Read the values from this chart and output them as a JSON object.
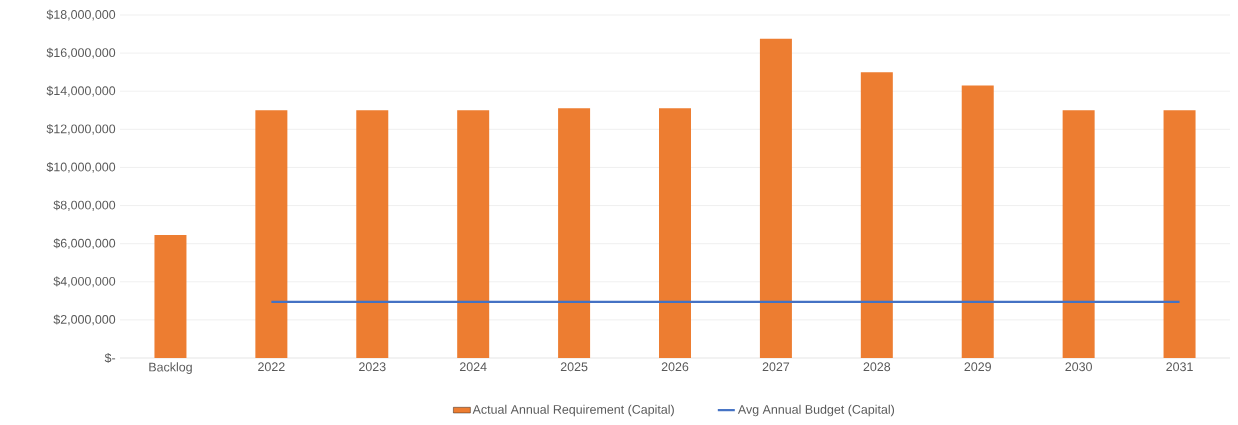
{
  "chart_data": {
    "type": "bar",
    "categories": [
      "Backlog",
      "2022",
      "2023",
      "2024",
      "2025",
      "2026",
      "2027",
      "2028",
      "2029",
      "2030",
      "2031"
    ],
    "series": [
      {
        "name": "Actual Annual Requirement (Capital)",
        "color": "#ed7d31",
        "values": [
          6450000,
          13000000,
          13000000,
          13000000,
          13100000,
          13100000,
          16750000,
          15000000,
          14300000,
          13000000,
          13000000
        ]
      },
      {
        "name": "Avg Annual Budget (Capital)",
        "type": "line",
        "color": "#4472c4",
        "values": [
          null,
          2950000,
          2950000,
          2950000,
          2950000,
          2950000,
          2950000,
          2950000,
          2950000,
          2950000,
          2950000
        ]
      }
    ],
    "ylim": [
      0,
      18000000
    ],
    "yticks": [
      {
        "value": 0,
        "label": "$-"
      },
      {
        "value": 2000000,
        "label": "$2,000,000"
      },
      {
        "value": 4000000,
        "label": "$4,000,000"
      },
      {
        "value": 6000000,
        "label": "$6,000,000"
      },
      {
        "value": 8000000,
        "label": "$8,000,000"
      },
      {
        "value": 10000000,
        "label": "$10,000,000"
      },
      {
        "value": 12000000,
        "label": "$12,000,000"
      },
      {
        "value": 14000000,
        "label": "$14,000,000"
      },
      {
        "value": 16000000,
        "label": "$16,000,000"
      },
      {
        "value": 18000000,
        "label": "$18,000,000"
      }
    ],
    "grid": "y",
    "legend": "bottom"
  }
}
